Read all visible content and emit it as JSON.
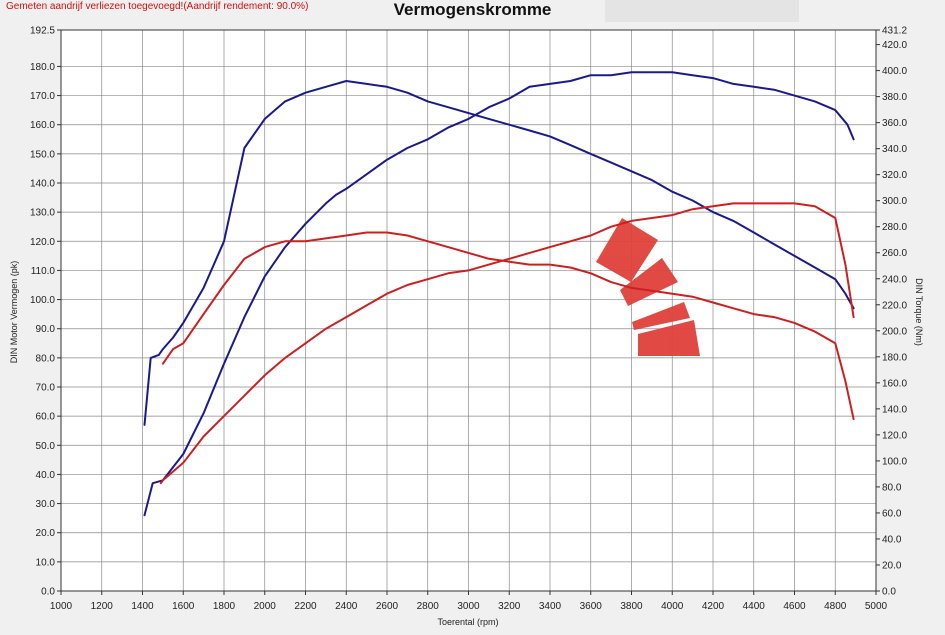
{
  "header": {
    "warning": "Gemeten aandrijf verliezen toegevoegd!(Aandrijf rendement: 90.0%)",
    "title": "Vermogenskromme"
  },
  "colors": {
    "before": "#cc2020",
    "after": "#1a1a8c",
    "logo": "#e0403a",
    "grid": "#8a8a8a"
  },
  "chart_data": {
    "type": "line",
    "title": "Vermogenskromme",
    "xlabel": "Toerental (rpm)",
    "ylabel": "DIN Motor Vermogen (pk)",
    "y2label": "DIN Torque (Nm)",
    "xlim": [
      1000,
      5000
    ],
    "ylim": [
      0,
      192.5
    ],
    "y2lim": [
      0,
      431.2
    ],
    "grid": true,
    "x_ticks": [
      "1000",
      "1200",
      "1400",
      "1600",
      "1800",
      "2000",
      "2200",
      "2400",
      "2600",
      "2800",
      "3000",
      "3200",
      "3400",
      "3600",
      "3800",
      "4000",
      "4200",
      "4400",
      "4600",
      "4800",
      "5000"
    ],
    "y_ticks": [
      "0.0",
      "10.0",
      "20.0",
      "30.0",
      "40.0",
      "50.0",
      "60.0",
      "70.0",
      "80.0",
      "90.0",
      "100.0",
      "110.0",
      "120.0",
      "130.0",
      "140.0",
      "150.0",
      "160.0",
      "170.0",
      "180.0",
      "192.5"
    ],
    "y2_ticks": [
      "0.0",
      "20.0",
      "40.0",
      "60.0",
      "80.0",
      "100.0",
      "120.0",
      "140.0",
      "160.0",
      "180.0",
      "200.0",
      "220.0",
      "240.0",
      "260.0",
      "280.0",
      "300.0",
      "320.0",
      "340.0",
      "360.0",
      "380.0",
      "400.0",
      "420.0",
      "431.2"
    ],
    "series": [
      {
        "color": "#1a1a8c",
        "axis": "left",
        "x": [
          1410,
          1450,
          1500,
          1600,
          1700,
          1800,
          1900,
          2000,
          2100,
          2200,
          2300,
          2350,
          2400,
          2500,
          2600,
          2700,
          2800,
          2900,
          3000,
          3100,
          3200,
          3300,
          3400,
          3500,
          3600,
          3700,
          3800,
          3900,
          4000,
          4100,
          4200,
          4300,
          4400,
          4500,
          4600,
          4700,
          4800,
          4860,
          4890
        ],
        "y": [
          26,
          37,
          38,
          47,
          61,
          78,
          94,
          108,
          118,
          126,
          133,
          136,
          138,
          143,
          148,
          152,
          155,
          159,
          162,
          166,
          169,
          173,
          174,
          175,
          177,
          177,
          178,
          178,
          178,
          177,
          176,
          174,
          173,
          172,
          170,
          168,
          165,
          160,
          155
        ]
      },
      {
        "color": "#1a1a8c",
        "axis": "left",
        "x": [
          1410,
          1440,
          1480,
          1500,
          1550,
          1600,
          1700,
          1800,
          1900,
          2000,
          2100,
          2200,
          2300,
          2400,
          2500,
          2600,
          2700,
          2800,
          2900,
          3000,
          3100,
          3200,
          3300,
          3400,
          3500,
          3600,
          3700,
          3800,
          3900,
          4000,
          4100,
          4200,
          4300,
          4400,
          4500,
          4600,
          4700,
          4800,
          4850,
          4890
        ],
        "y": [
          57,
          80,
          81,
          83,
          87,
          92,
          104,
          120,
          152,
          162,
          168,
          171,
          173,
          175,
          174,
          173,
          171,
          168,
          166,
          164,
          162,
          160,
          158,
          156,
          153,
          150,
          147,
          144,
          141,
          137,
          134,
          130,
          127,
          123,
          119,
          115,
          111,
          107,
          102,
          97
        ]
      },
      {
        "color": "#cc2020",
        "axis": "left",
        "x": [
          1490,
          1500,
          1550,
          1600,
          1700,
          1800,
          1900,
          2000,
          2100,
          2200,
          2300,
          2400,
          2500,
          2600,
          2700,
          2800,
          2900,
          3000,
          3100,
          3200,
          3300,
          3400,
          3500,
          3600,
          3700,
          3800,
          3900,
          4000,
          4100,
          4200,
          4300,
          4400,
          4500,
          4600,
          4700,
          4800,
          4850,
          4890
        ],
        "y": [
          37,
          38,
          41,
          44,
          53,
          60,
          67,
          74,
          80,
          85,
          90,
          94,
          98,
          102,
          105,
          107,
          109,
          110,
          112,
          114,
          116,
          118,
          120,
          122,
          125,
          127,
          128,
          129,
          131,
          132,
          133,
          133,
          133,
          133,
          132,
          128,
          112,
          94
        ]
      },
      {
        "color": "#cc2020",
        "axis": "left",
        "x": [
          1500,
          1550,
          1600,
          1700,
          1800,
          1900,
          2000,
          2100,
          2200,
          2300,
          2400,
          2500,
          2600,
          2700,
          2800,
          2900,
          3000,
          3100,
          3200,
          3300,
          3400,
          3500,
          3600,
          3700,
          3800,
          3900,
          4000,
          4100,
          4200,
          4300,
          4400,
          4500,
          4600,
          4700,
          4800,
          4850,
          4890
        ],
        "y": [
          78,
          83,
          85,
          95,
          105,
          114,
          118,
          120,
          120,
          121,
          122,
          123,
          123,
          122,
          120,
          118,
          116,
          114,
          113,
          112,
          112,
          111,
          109,
          106,
          104,
          103,
          102,
          101,
          99,
          97,
          95,
          94,
          92,
          89,
          85,
          72,
          59
        ]
      }
    ]
  }
}
